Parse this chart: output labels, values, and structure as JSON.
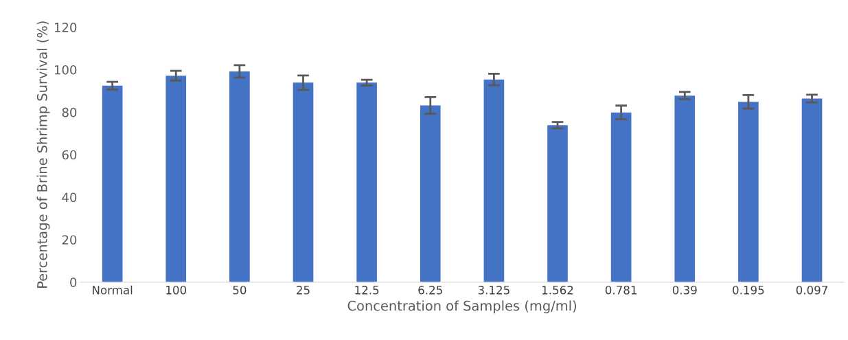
{
  "chart_data": {
    "type": "bar",
    "xlabel": "Concentration of Samples (mg/ml)",
    "ylabel": "Percentage of Brine Shrimp Survival (%)",
    "categories": [
      "Normal",
      "100",
      "50",
      "25",
      "12.5",
      "6.25",
      "3.125",
      "1.562",
      "0.781",
      "0.39",
      "0.195",
      "0.097"
    ],
    "values": [
      92.5,
      97.2,
      99.2,
      93.9,
      93.9,
      83.2,
      95.4,
      73.9,
      79.9,
      87.8,
      84.9,
      86.4
    ],
    "errors": [
      1.8,
      2.3,
      2.9,
      3.4,
      1.4,
      3.9,
      2.7,
      1.5,
      3.2,
      1.7,
      3.2,
      1.8
    ],
    "color": "#4472c4",
    "ylim": [
      0,
      120
    ],
    "yticks": [
      0,
      20,
      40,
      60,
      80,
      100,
      120
    ],
    "grid": false,
    "legend": false
  }
}
